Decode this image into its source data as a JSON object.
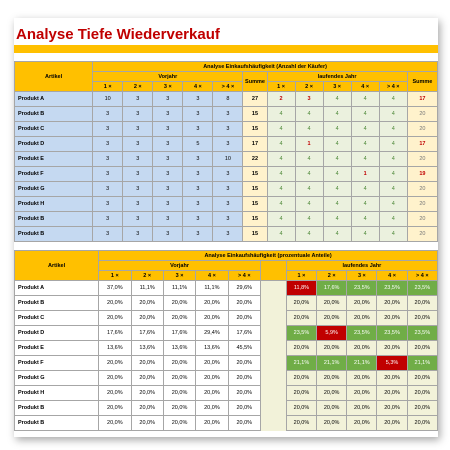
{
  "title": "Analyse Tiefe Wiederverkauf",
  "tables": [
    {
      "caption": "Analyse Einkaufshäufigkeit (Anzahl der Käufer)",
      "artikel": "Artikel",
      "vorjahr": "Vorjahr",
      "summe": "Summe",
      "laufend": "laufendes Jahr",
      "summe2": "Summe",
      "columns": [
        "1 ×",
        "2 ×",
        "3 ×",
        "4 ×",
        "> 4 ×"
      ],
      "rows": [
        {
          "label": "Produkt A",
          "prev": [
            10,
            3,
            3,
            3,
            8
          ],
          "prev_sum": 27,
          "cur": [
            2,
            3,
            4,
            4,
            4
          ],
          "cur_sum": 17
        },
        {
          "label": "Produkt B",
          "prev": [
            3,
            3,
            3,
            3,
            3
          ],
          "prev_sum": 15,
          "cur": [
            4,
            4,
            4,
            4,
            4
          ],
          "cur_sum": 20
        },
        {
          "label": "Produkt C",
          "prev": [
            3,
            3,
            3,
            3,
            3
          ],
          "prev_sum": 15,
          "cur": [
            4,
            4,
            4,
            4,
            4
          ],
          "cur_sum": 20
        },
        {
          "label": "Produkt D",
          "prev": [
            3,
            3,
            3,
            5,
            3
          ],
          "prev_sum": 17,
          "cur": [
            4,
            1,
            4,
            4,
            4
          ],
          "cur_sum": 17
        },
        {
          "label": "Produkt E",
          "prev": [
            3,
            3,
            3,
            3,
            10
          ],
          "prev_sum": 22,
          "cur": [
            4,
            4,
            4,
            4,
            4
          ],
          "cur_sum": 20
        },
        {
          "label": "Produkt F",
          "prev": [
            3,
            3,
            3,
            3,
            3
          ],
          "prev_sum": 15,
          "cur": [
            4,
            4,
            4,
            1,
            4
          ],
          "cur_sum": 19
        },
        {
          "label": "Produkt G",
          "prev": [
            3,
            3,
            3,
            3,
            3
          ],
          "prev_sum": 15,
          "cur": [
            4,
            4,
            4,
            4,
            4
          ],
          "cur_sum": 20
        },
        {
          "label": "Produkt H",
          "prev": [
            3,
            3,
            3,
            3,
            3
          ],
          "prev_sum": 15,
          "cur": [
            4,
            4,
            4,
            4,
            4
          ],
          "cur_sum": 20
        },
        {
          "label": "Produkt B",
          "prev": [
            3,
            3,
            3,
            3,
            3
          ],
          "prev_sum": 15,
          "cur": [
            4,
            4,
            4,
            4,
            4
          ],
          "cur_sum": 20
        },
        {
          "label": "Produkt B",
          "prev": [
            3,
            3,
            3,
            3,
            3
          ],
          "prev_sum": 15,
          "cur": [
            4,
            4,
            4,
            4,
            4
          ],
          "cur_sum": 20
        }
      ]
    },
    {
      "caption": "Analyse Einkaufshäufigkeit (prozentuale Anteile)",
      "artikel": "Artikel",
      "vorjahr": "Vorjahr",
      "laufend": "laufendes Jahr",
      "columns": [
        "1 ×",
        "2 ×",
        "3 ×",
        "4 ×",
        "> 4 ×"
      ],
      "rows": [
        {
          "label": "Produkt A",
          "prev": [
            "37,0%",
            "11,1%",
            "11,1%",
            "11,1%",
            "29,6%"
          ],
          "cur": [
            "11,8%",
            "17,6%",
            "23,5%",
            "23,5%",
            "23,5%"
          ]
        },
        {
          "label": "Produkt B",
          "prev": [
            "20,0%",
            "20,0%",
            "20,0%",
            "20,0%",
            "20,0%"
          ],
          "cur": [
            "20,0%",
            "20,0%",
            "20,0%",
            "20,0%",
            "20,0%"
          ]
        },
        {
          "label": "Produkt C",
          "prev": [
            "20,0%",
            "20,0%",
            "20,0%",
            "20,0%",
            "20,0%"
          ],
          "cur": [
            "20,0%",
            "20,0%",
            "20,0%",
            "20,0%",
            "20,0%"
          ]
        },
        {
          "label": "Produkt D",
          "prev": [
            "17,6%",
            "17,6%",
            "17,6%",
            "29,4%",
            "17,6%"
          ],
          "cur": [
            "23,5%",
            "5,9%",
            "23,5%",
            "23,5%",
            "23,5%"
          ]
        },
        {
          "label": "Produkt E",
          "prev": [
            "13,6%",
            "13,6%",
            "13,6%",
            "13,6%",
            "45,5%"
          ],
          "cur": [
            "20,0%",
            "20,0%",
            "20,0%",
            "20,0%",
            "20,0%"
          ]
        },
        {
          "label": "Produkt F",
          "prev": [
            "20,0%",
            "20,0%",
            "20,0%",
            "20,0%",
            "20,0%"
          ],
          "cur": [
            "21,1%",
            "21,1%",
            "21,1%",
            "5,3%",
            "21,1%"
          ]
        },
        {
          "label": "Produkt G",
          "prev": [
            "20,0%",
            "20,0%",
            "20,0%",
            "20,0%",
            "20,0%"
          ],
          "cur": [
            "20,0%",
            "20,0%",
            "20,0%",
            "20,0%",
            "20,0%"
          ]
        },
        {
          "label": "Produkt H",
          "prev": [
            "20,0%",
            "20,0%",
            "20,0%",
            "20,0%",
            "20,0%"
          ],
          "cur": [
            "20,0%",
            "20,0%",
            "20,0%",
            "20,0%",
            "20,0%"
          ]
        },
        {
          "label": "Produkt B",
          "prev": [
            "20,0%",
            "20,0%",
            "20,0%",
            "20,0%",
            "20,0%"
          ],
          "cur": [
            "20,0%",
            "20,0%",
            "20,0%",
            "20,0%",
            "20,0%"
          ]
        },
        {
          "label": "Produkt B",
          "prev": [
            "20,0%",
            "20,0%",
            "20,0%",
            "20,0%",
            "20,0%"
          ],
          "cur": [
            "20,0%",
            "20,0%",
            "20,0%",
            "20,0%",
            "20,0%"
          ]
        }
      ]
    }
  ]
}
